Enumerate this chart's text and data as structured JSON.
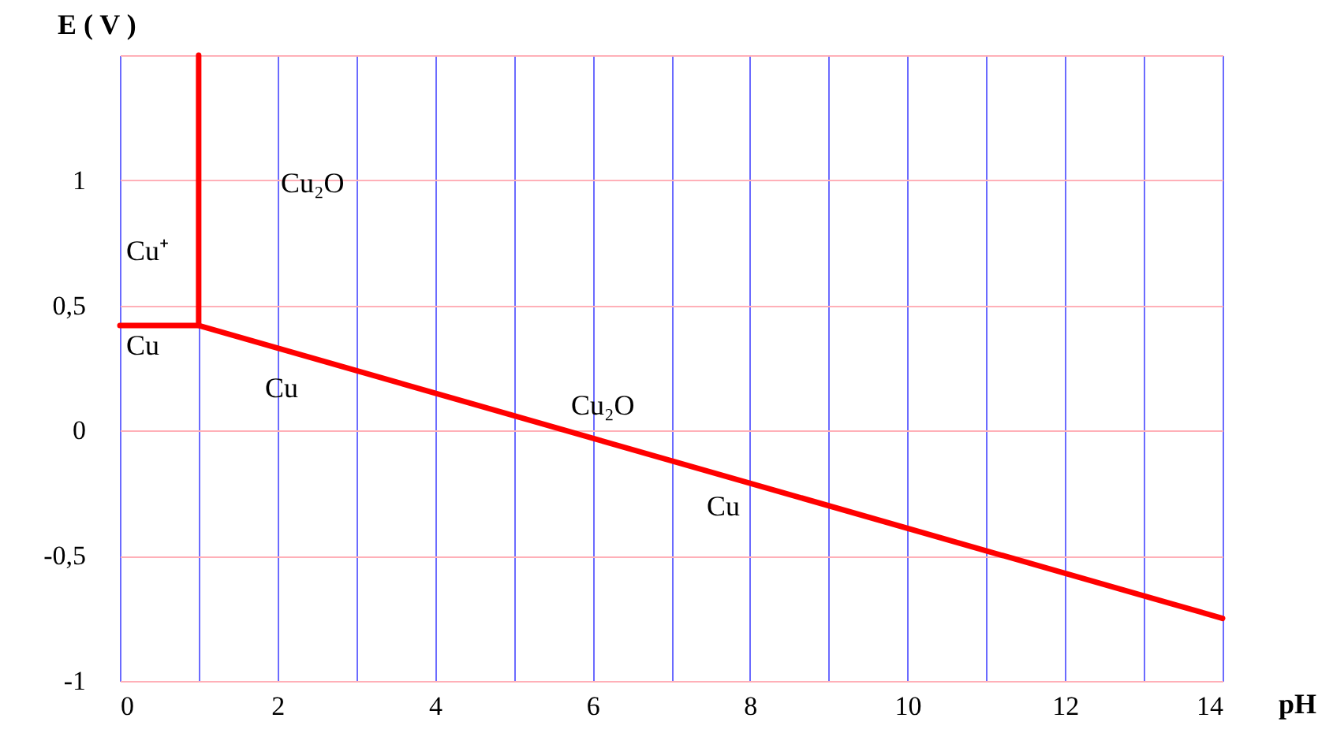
{
  "chart_data": {
    "type": "line",
    "xlabel": "pH",
    "ylabel": "E ( V )",
    "xlim": [
      0,
      14
    ],
    "ylim": [
      -1,
      1.5
    ],
    "xticks": [
      0,
      {
        "value": 1,
        "label": null
      },
      2,
      {
        "value": 3,
        "label": null
      },
      4,
      {
        "value": 5,
        "label": null
      },
      6,
      {
        "value": 7,
        "label": null
      },
      8,
      {
        "value": 9,
        "label": null
      },
      10,
      {
        "value": 11,
        "label": null
      },
      12,
      {
        "value": 13,
        "label": null
      },
      14
    ],
    "yticks": [
      -1,
      {
        "value": -0.5,
        "label": "-0,5"
      },
      0,
      {
        "value": 0.5,
        "label": "0,5"
      },
      1,
      {
        "value": 1.5,
        "label": null
      }
    ],
    "grid": true,
    "series": [
      {
        "color": "#ff0000",
        "x": [
          0,
          1,
          1
        ],
        "values": [
          0.42,
          0.42,
          1.5
        ]
      },
      {
        "color": "#ff0000",
        "x": [
          1,
          14
        ],
        "values": [
          0.42,
          -0.75
        ]
      }
    ],
    "annotations": [
      "Cu₂O",
      "Cu⁺",
      "Cu",
      "Cu",
      "Cu₂O",
      "Cu"
    ]
  }
}
